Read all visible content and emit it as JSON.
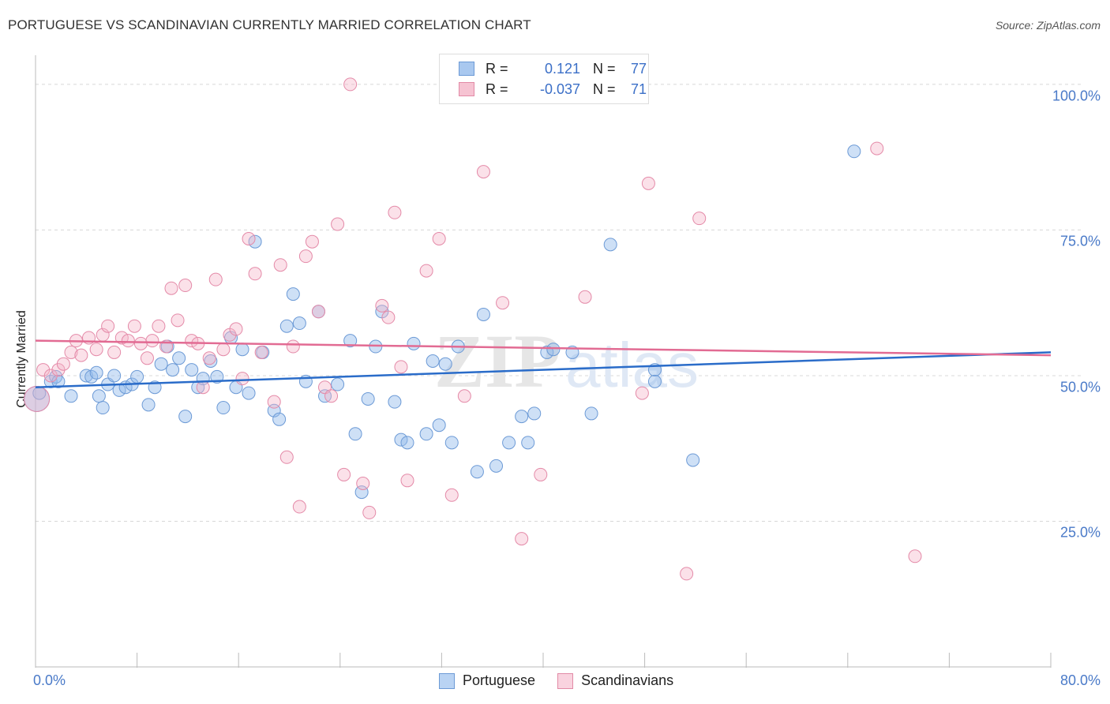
{
  "header": {
    "title": "PORTUGUESE VS SCANDINAVIAN CURRENTLY MARRIED CORRELATION CHART",
    "source": "Source: ZipAtlas.com"
  },
  "watermark": {
    "left": "ZIP",
    "right": "atlas"
  },
  "legend": {
    "rows": [
      {
        "r_label": "R =",
        "r_value": "0.121",
        "n_label": "N =",
        "n_value": "77",
        "color": "#a9c8ef",
        "border": "#6c9ad6"
      },
      {
        "r_label": "R =",
        "r_value": "-0.037",
        "n_label": "N =",
        "n_value": "71",
        "color": "#f6c3d2",
        "border": "#e28aa6"
      }
    ]
  },
  "bottom_legend": {
    "items": [
      "Portuguese",
      "Scandinavians"
    ]
  },
  "colors": {
    "blue_fill": "rgba(147,186,236,0.45)",
    "blue_stroke": "#6c9ad6",
    "blue_line": "#2a6cc9",
    "pink_fill": "rgba(246,180,200,0.40)",
    "pink_stroke": "#e48aa8",
    "pink_line": "#e26b93",
    "grid": "#d8d8d8",
    "axis": "#bbbbbb"
  },
  "chart_data": {
    "type": "scatter",
    "title": "PORTUGUESE VS SCANDINAVIAN CURRENTLY MARRIED CORRELATION CHART",
    "xlabel": "",
    "ylabel": "Currently Married",
    "xlim": [
      0,
      80
    ],
    "ylim": [
      0,
      105
    ],
    "x_tick_labels": [
      "0.0%",
      "80.0%"
    ],
    "y_ticks": [
      25,
      50,
      75,
      100
    ],
    "y_tick_labels": [
      "25.0%",
      "50.0%",
      "75.0%",
      "100.0%"
    ],
    "grid": true,
    "legend_position": "top-center",
    "series": [
      {
        "name": "Portuguese",
        "trend": [
          [
            0,
            48.0
          ],
          [
            80,
            54.0
          ]
        ],
        "points": [
          [
            0.1,
            46
          ],
          [
            1.2,
            49
          ],
          [
            1.6,
            49.8
          ],
          [
            1.8,
            49
          ],
          [
            2.8,
            46.5
          ],
          [
            4.0,
            50
          ],
          [
            4.4,
            49.8
          ],
          [
            4.8,
            50.5
          ],
          [
            5.0,
            46.5
          ],
          [
            5.3,
            44.5
          ],
          [
            5.7,
            48.5
          ],
          [
            6.2,
            50
          ],
          [
            6.6,
            47.5
          ],
          [
            7.1,
            48
          ],
          [
            7.6,
            48.5
          ],
          [
            8.0,
            49.8
          ],
          [
            8.9,
            45
          ],
          [
            9.4,
            48
          ],
          [
            9.9,
            52
          ],
          [
            10.4,
            55
          ],
          [
            10.8,
            51
          ],
          [
            11.3,
            53
          ],
          [
            11.8,
            43
          ],
          [
            12.3,
            51
          ],
          [
            12.8,
            48
          ],
          [
            13.2,
            49.5
          ],
          [
            13.8,
            52.5
          ],
          [
            14.3,
            49.8
          ],
          [
            14.8,
            44.5
          ],
          [
            15.4,
            56.5
          ],
          [
            15.8,
            48
          ],
          [
            16.3,
            54.5
          ],
          [
            16.8,
            47
          ],
          [
            17.3,
            73
          ],
          [
            17.9,
            54
          ],
          [
            18.8,
            44
          ],
          [
            19.2,
            42.5
          ],
          [
            19.8,
            58.5
          ],
          [
            20.3,
            64
          ],
          [
            20.8,
            59
          ],
          [
            21.3,
            49
          ],
          [
            22.3,
            61
          ],
          [
            22.8,
            46.5
          ],
          [
            23.8,
            48.5
          ],
          [
            24.8,
            56
          ],
          [
            25.2,
            40
          ],
          [
            25.7,
            30
          ],
          [
            26.2,
            46
          ],
          [
            26.8,
            55
          ],
          [
            27.3,
            61
          ],
          [
            28.3,
            45.5
          ],
          [
            28.8,
            39
          ],
          [
            29.3,
            38.5
          ],
          [
            29.8,
            55.5
          ],
          [
            30.8,
            40
          ],
          [
            31.3,
            52.5
          ],
          [
            31.8,
            41.5
          ],
          [
            32.3,
            52
          ],
          [
            32.8,
            38.5
          ],
          [
            33.3,
            55
          ],
          [
            34.8,
            33.5
          ],
          [
            35.3,
            60.5
          ],
          [
            36.3,
            34.5
          ],
          [
            37.3,
            38.5
          ],
          [
            38.3,
            43
          ],
          [
            38.8,
            38.5
          ],
          [
            39.3,
            43.5
          ],
          [
            40.3,
            54
          ],
          [
            40.8,
            54.5
          ],
          [
            42.3,
            54
          ],
          [
            43.8,
            43.5
          ],
          [
            45.3,
            72.5
          ],
          [
            48.8,
            51
          ],
          [
            48.8,
            49
          ],
          [
            51.8,
            35.5
          ],
          [
            64.5,
            88.5
          ],
          [
            0.3,
            47
          ]
        ]
      },
      {
        "name": "Scandinavians",
        "trend": [
          [
            0,
            56.0
          ],
          [
            80,
            53.5
          ]
        ],
        "points": [
          [
            0.1,
            46
          ],
          [
            0.6,
            51
          ],
          [
            1.2,
            50
          ],
          [
            1.8,
            51
          ],
          [
            2.2,
            52
          ],
          [
            2.8,
            54
          ],
          [
            3.2,
            56
          ],
          [
            3.6,
            53.5
          ],
          [
            4.2,
            56.5
          ],
          [
            4.8,
            54.5
          ],
          [
            5.3,
            57
          ],
          [
            5.7,
            58.5
          ],
          [
            6.2,
            54
          ],
          [
            6.8,
            56.5
          ],
          [
            7.3,
            56
          ],
          [
            7.8,
            58.5
          ],
          [
            8.3,
            55.5
          ],
          [
            8.8,
            53
          ],
          [
            9.2,
            56
          ],
          [
            9.7,
            58.5
          ],
          [
            10.3,
            55
          ],
          [
            10.7,
            65
          ],
          [
            11.2,
            59.5
          ],
          [
            11.8,
            65.5
          ],
          [
            12.3,
            56
          ],
          [
            12.8,
            55.5
          ],
          [
            13.2,
            48
          ],
          [
            13.7,
            53
          ],
          [
            14.2,
            66.5
          ],
          [
            14.8,
            54.5
          ],
          [
            15.3,
            57
          ],
          [
            15.8,
            58
          ],
          [
            16.3,
            49.5
          ],
          [
            16.8,
            73.5
          ],
          [
            17.3,
            67.5
          ],
          [
            17.8,
            54
          ],
          [
            18.8,
            45.5
          ],
          [
            19.3,
            69
          ],
          [
            19.8,
            36
          ],
          [
            20.3,
            55
          ],
          [
            20.8,
            27.5
          ],
          [
            21.3,
            70.5
          ],
          [
            21.8,
            73
          ],
          [
            22.3,
            61
          ],
          [
            22.8,
            48
          ],
          [
            23.3,
            46.5
          ],
          [
            23.8,
            76
          ],
          [
            24.3,
            33
          ],
          [
            24.8,
            100
          ],
          [
            25.8,
            31.5
          ],
          [
            26.3,
            26.5
          ],
          [
            27.3,
            62
          ],
          [
            27.8,
            60
          ],
          [
            28.3,
            78
          ],
          [
            28.8,
            51.5
          ],
          [
            29.3,
            32
          ],
          [
            30.8,
            68
          ],
          [
            31.8,
            73.5
          ],
          [
            32.8,
            29.5
          ],
          [
            33.8,
            46.5
          ],
          [
            35.3,
            85
          ],
          [
            36.8,
            62.5
          ],
          [
            38.3,
            22
          ],
          [
            39.8,
            33
          ],
          [
            43.3,
            63.5
          ],
          [
            47.8,
            47
          ],
          [
            48.3,
            83
          ],
          [
            51.3,
            16
          ],
          [
            52.3,
            77
          ],
          [
            66.3,
            89
          ],
          [
            69.3,
            19
          ]
        ]
      }
    ]
  }
}
